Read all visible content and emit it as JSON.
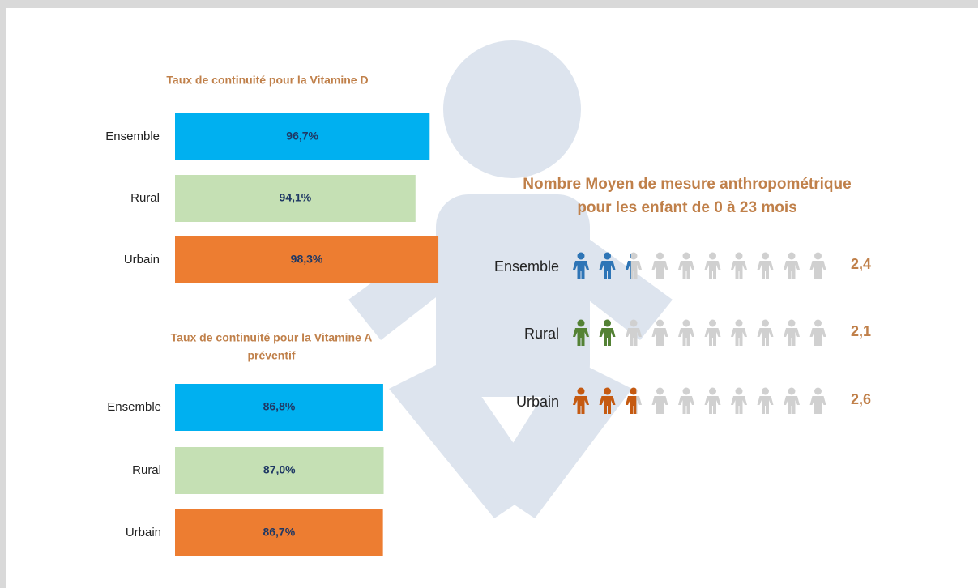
{
  "chart_data": [
    {
      "type": "bar",
      "orientation": "horizontal",
      "title": [
        "Taux de continuité pour la Vitamine D"
      ],
      "categories": [
        "Ensemble",
        "Rural",
        "Urbain"
      ],
      "values": [
        96.7,
        94.1,
        98.3
      ],
      "value_labels": [
        "96,7%",
        "94,1%",
        "98,3%"
      ],
      "colors": [
        "#00b0f0",
        "#c5e0b4",
        "#ed7d31"
      ],
      "xlim": [
        50,
        100
      ]
    },
    {
      "type": "bar",
      "orientation": "horizontal",
      "title": [
        "Taux de continuité pour la Vitamine A",
        "préventif"
      ],
      "categories": [
        "Ensemble",
        "Rural",
        "Urbain"
      ],
      "values": [
        86.8,
        87.0,
        86.7
      ],
      "value_labels": [
        "86,8%",
        "87,0%",
        "86,7%"
      ],
      "colors": [
        "#00b0f0",
        "#c5e0b4",
        "#ed7d31"
      ],
      "xlim": [
        0,
        100
      ]
    },
    {
      "type": "pictogram",
      "title": [
        "Nombre Moyen de mesure anthropométrique",
        "pour  les enfant de 0 à 23 mois"
      ],
      "categories": [
        "Ensemble",
        "Rural",
        "Urbain"
      ],
      "values": [
        2.4,
        2.1,
        2.6
      ],
      "value_labels": [
        "2,4",
        "2,1",
        "2,6"
      ],
      "colors": [
        "#2e75b6",
        "#548235",
        "#c55a11"
      ],
      "empty_color": "#d0d0d0",
      "icon_count": 10
    }
  ]
}
